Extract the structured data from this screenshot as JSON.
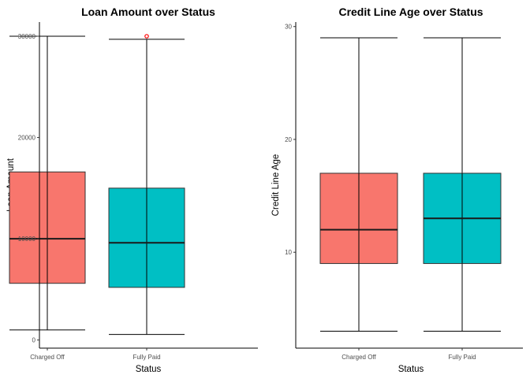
{
  "chart_data": [
    {
      "type": "boxplot",
      "title": "Loan Amount over Status",
      "xlabel": "Status",
      "ylabel": "Loan Amount",
      "categories": [
        "Charged Off",
        "Fully Paid"
      ],
      "ylim": [
        -800,
        31400
      ],
      "yticks": [
        0,
        10000,
        20000,
        30000
      ],
      "ytick_labels": [
        "0",
        "10000",
        "20000",
        "30000"
      ],
      "series": [
        {
          "name": "Charged Off",
          "color": "#F8766D",
          "min": 1000,
          "q1": 5600,
          "median": 10000,
          "q3": 16600,
          "max": 30000,
          "outliers": []
        },
        {
          "name": "Fully Paid",
          "color": "#00BFC4",
          "min": 550,
          "q1": 5200,
          "median": 9600,
          "q3": 15000,
          "max": 29700,
          "outliers": [
            30000
          ]
        }
      ],
      "outlier_color": "#FF0000"
    },
    {
      "type": "boxplot",
      "title": "Credit Line Age over Status",
      "xlabel": "Status",
      "ylabel": "Credit Line Age",
      "categories": [
        "Charged Off",
        "Fully Paid"
      ],
      "ylim": [
        1.5,
        30.4
      ],
      "yticks": [
        10,
        20,
        30
      ],
      "ytick_labels": [
        "10",
        "20",
        "30"
      ],
      "series": [
        {
          "name": "Charged Off",
          "color": "#F8766D",
          "min": 3,
          "q1": 9,
          "median": 12,
          "q3": 17,
          "max": 29,
          "outliers": []
        },
        {
          "name": "Fully Paid",
          "color": "#00BFC4",
          "min": 3,
          "q1": 9,
          "median": 13,
          "q3": 17,
          "max": 29,
          "outliers": []
        }
      ]
    }
  ]
}
